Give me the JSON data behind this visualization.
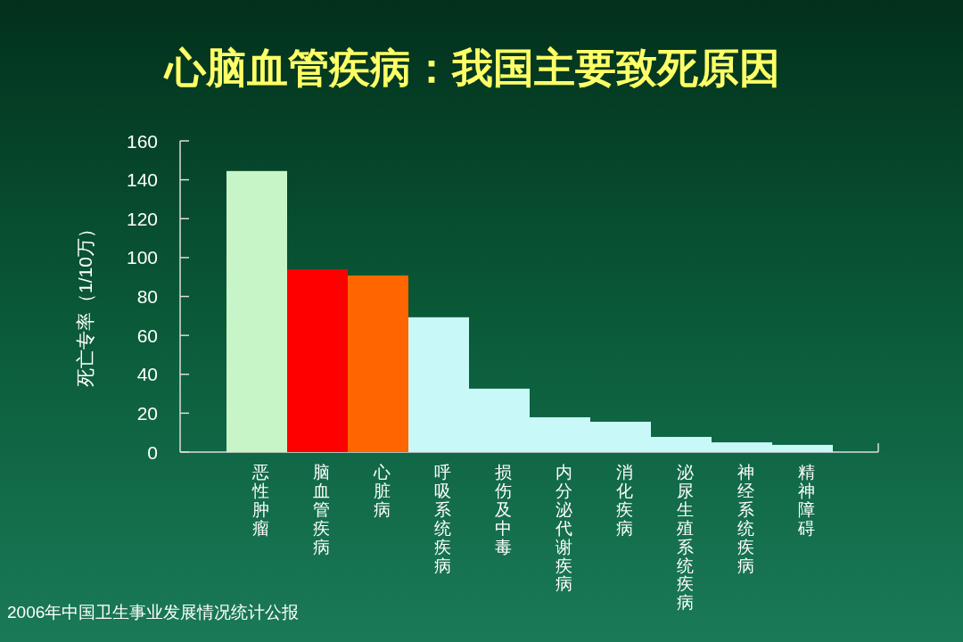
{
  "chart_data": {
    "type": "bar",
    "title": "心脑血管疾病：我国主要致死原因",
    "ylabel": "死亡专率（1/10万）",
    "categories": [
      "恶性肿瘤",
      "脑血管疾病",
      "心脏病",
      "呼吸系统疾病",
      "损伤及中毒",
      "内分泌代谢疾病",
      "消化疾病",
      "泌尿生殖系统疾病",
      "神经系统疾病",
      "精神障碍"
    ],
    "values": [
      144.5,
      94,
      90.8,
      69.3,
      32.6,
      17.9,
      15.6,
      7.8,
      5,
      3.7
    ],
    "colors": [
      "#c8f5c8",
      "#ff0000",
      "#ff6600",
      "#c8f8f8",
      "#c8f8f8",
      "#c8f8f8",
      "#c8f8f8",
      "#c8f8f8",
      "#c8f8f8",
      "#c8f8f8"
    ],
    "ylim": [
      0,
      160
    ],
    "yticks": [
      0,
      20,
      40,
      60,
      80,
      100,
      120,
      140,
      160
    ],
    "grid": false,
    "annotations": [
      "2006年中国卫生事业发展情况统计公报"
    ]
  }
}
